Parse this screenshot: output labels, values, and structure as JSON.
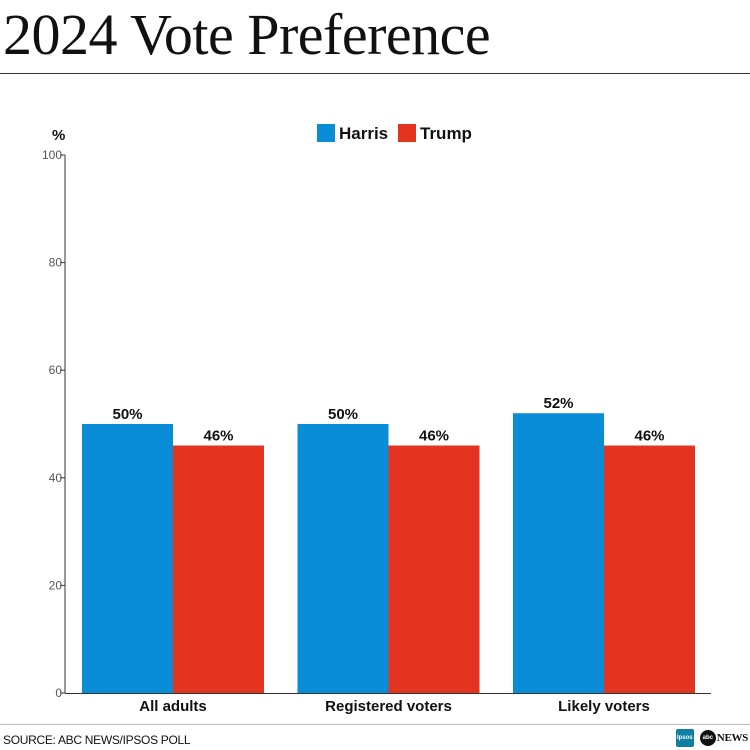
{
  "title": "2024 Vote Preference",
  "colors": {
    "harris": "#0A8DD7",
    "trump": "#E2341F",
    "axis": "#333333",
    "text": "#111111"
  },
  "chart_data": {
    "type": "bar",
    "title": "2024 Vote Preference",
    "ylabel": "%",
    "xlabel": "",
    "ylim": [
      0,
      100
    ],
    "yticks": [
      0,
      20,
      40,
      60,
      80,
      100
    ],
    "grid": false,
    "legend_position": "top-center",
    "categories": [
      "All adults",
      "Registered voters",
      "Likely voters"
    ],
    "series": [
      {
        "name": "Harris",
        "color": "#0A8DD7",
        "values": [
          50,
          50,
          52
        ],
        "labels": [
          "50%",
          "50%",
          "52%"
        ]
      },
      {
        "name": "Trump",
        "color": "#E2341F",
        "values": [
          46,
          46,
          46
        ],
        "labels": [
          "46%",
          "46%",
          "46%"
        ]
      }
    ]
  },
  "footer": {
    "source": "SOURCE: ABC NEWS/IPSOS POLL",
    "ipsos_logo_text": "Ipsos",
    "abc_logo_text": "abc",
    "abc_news_text": "NEWS"
  }
}
